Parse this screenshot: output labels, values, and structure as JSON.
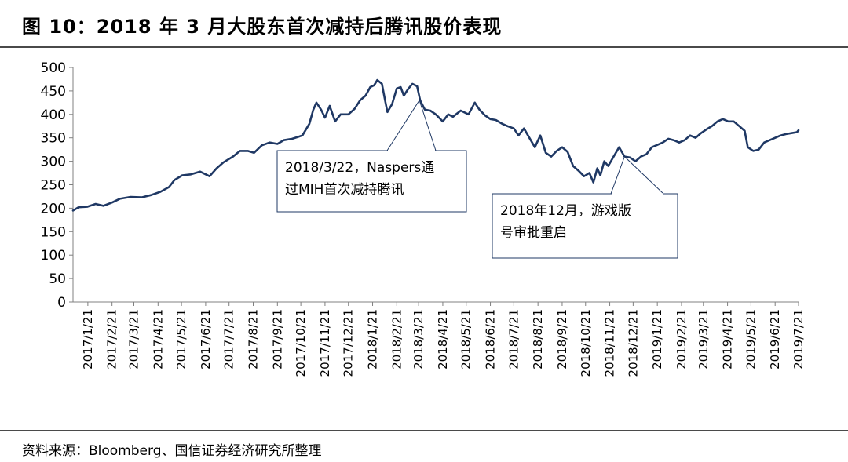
{
  "figure": {
    "title": "图 10：2018 年 3 月大股东首次减持后腾讯股价表现",
    "source": "资料来源：Bloomberg、国信证券经济研究所整理"
  },
  "colors": {
    "line": "#1f3864",
    "axis": "#808080",
    "callout_border": "#1f3864",
    "rule": "#4a4a4a"
  },
  "chart_data": {
    "type": "line",
    "title": "",
    "xlabel": "",
    "ylabel": "",
    "ylim": [
      0,
      500
    ],
    "yticks": [
      0,
      50,
      100,
      150,
      200,
      250,
      300,
      350,
      400,
      450,
      500
    ],
    "x_tick_labels": [
      "2017/1/21",
      "2017/2/21",
      "2017/3/21",
      "2017/4/21",
      "2017/5/21",
      "2017/6/21",
      "2017/7/21",
      "2017/8/21",
      "2017/9/21",
      "2017/10/21",
      "2017/11/21",
      "2017/12/21",
      "2018/1/21",
      "2018/2/21",
      "2018/3/21",
      "2018/4/21",
      "2018/5/21",
      "2018/6/21",
      "2018/7/21",
      "2018/8/21",
      "2018/9/21",
      "2018/10/21",
      "2018/11/21",
      "2018/12/21",
      "2019/1/21",
      "2019/2/21",
      "2019/3/21",
      "2019/4/21",
      "2019/5/21",
      "2019/6/21",
      "2019/7/21"
    ],
    "xlim": [
      "2017/1/2",
      "2019/7/21"
    ],
    "grid": false,
    "legend": "none",
    "series": [
      {
        "values": [
          [
            "2017/1/2",
            195
          ],
          [
            "2017/1/9",
            202
          ],
          [
            "2017/1/20",
            203
          ],
          [
            "2017/1/31",
            209
          ],
          [
            "2017/2/10",
            205
          ],
          [
            "2017/2/21",
            212
          ],
          [
            "2017/3/3",
            220
          ],
          [
            "2017/3/17",
            224
          ],
          [
            "2017/3/31",
            223
          ],
          [
            "2017/4/12",
            228
          ],
          [
            "2017/4/24",
            235
          ],
          [
            "2017/5/5",
            245
          ],
          [
            "2017/5/12",
            260
          ],
          [
            "2017/5/22",
            270
          ],
          [
            "2017/6/2",
            272
          ],
          [
            "2017/6/14",
            278
          ],
          [
            "2017/6/26",
            268
          ],
          [
            "2017/7/5",
            285
          ],
          [
            "2017/7/14",
            298
          ],
          [
            "2017/7/26",
            310
          ],
          [
            "2017/8/4",
            322
          ],
          [
            "2017/8/14",
            322
          ],
          [
            "2017/8/22",
            318
          ],
          [
            "2017/9/1",
            334
          ],
          [
            "2017/9/11",
            340
          ],
          [
            "2017/9/21",
            337
          ],
          [
            "2017/9/29",
            345
          ],
          [
            "2017/10/10",
            348
          ],
          [
            "2017/10/23",
            355
          ],
          [
            "2017/11/1",
            380
          ],
          [
            "2017/11/6",
            410
          ],
          [
            "2017/11/10",
            425
          ],
          [
            "2017/11/16",
            410
          ],
          [
            "2017/11/21",
            393
          ],
          [
            "2017/11/27",
            418
          ],
          [
            "2017/12/4",
            385
          ],
          [
            "2017/12/11",
            400
          ],
          [
            "2017/12/21",
            400
          ],
          [
            "2017/12/29",
            412
          ],
          [
            "2018/1/5",
            430
          ],
          [
            "2018/1/12",
            440
          ],
          [
            "2018/1/18",
            458
          ],
          [
            "2018/1/23",
            462
          ],
          [
            "2018/1/27",
            473
          ],
          [
            "2018/2/2",
            465
          ],
          [
            "2018/2/6",
            430
          ],
          [
            "2018/2/9",
            405
          ],
          [
            "2018/2/15",
            422
          ],
          [
            "2018/2/21",
            455
          ],
          [
            "2018/2/26",
            458
          ],
          [
            "2018/3/2",
            440
          ],
          [
            "2018/3/8",
            455
          ],
          [
            "2018/3/13",
            465
          ],
          [
            "2018/3/19",
            460
          ],
          [
            "2018/3/23",
            430
          ],
          [
            "2018/3/29",
            410
          ],
          [
            "2018/4/5",
            408
          ],
          [
            "2018/4/12",
            400
          ],
          [
            "2018/4/21",
            385
          ],
          [
            "2018/4/28",
            400
          ],
          [
            "2018/5/4",
            395
          ],
          [
            "2018/5/14",
            408
          ],
          [
            "2018/5/24",
            400
          ],
          [
            "2018/6/1",
            425
          ],
          [
            "2018/6/7",
            410
          ],
          [
            "2018/6/14",
            398
          ],
          [
            "2018/6/21",
            390
          ],
          [
            "2018/6/28",
            388
          ],
          [
            "2018/7/6",
            380
          ],
          [
            "2018/7/13",
            375
          ],
          [
            "2018/7/21",
            370
          ],
          [
            "2018/7/27",
            355
          ],
          [
            "2018/8/3",
            370
          ],
          [
            "2018/8/10",
            350
          ],
          [
            "2018/8/17",
            330
          ],
          [
            "2018/8/24",
            355
          ],
          [
            "2018/8/31",
            318
          ],
          [
            "2018/9/7",
            310
          ],
          [
            "2018/9/14",
            322
          ],
          [
            "2018/9/21",
            330
          ],
          [
            "2018/9/28",
            320
          ],
          [
            "2018/10/5",
            290
          ],
          [
            "2018/10/12",
            280
          ],
          [
            "2018/10/19",
            268
          ],
          [
            "2018/10/26",
            275
          ],
          [
            "2018/10/31",
            255
          ],
          [
            "2018/11/5",
            285
          ],
          [
            "2018/11/9",
            270
          ],
          [
            "2018/11/14",
            300
          ],
          [
            "2018/11/19",
            290
          ],
          [
            "2018/11/26",
            310
          ],
          [
            "2018/12/3",
            330
          ],
          [
            "2018/12/10",
            310
          ],
          [
            "2018/12/17",
            308
          ],
          [
            "2018/12/24",
            300
          ],
          [
            "2018/12/31",
            310
          ],
          [
            "2019/1/7",
            315
          ],
          [
            "2019/1/14",
            330
          ],
          [
            "2019/1/21",
            335
          ],
          [
            "2019/1/28",
            340
          ],
          [
            "2019/2/4",
            348
          ],
          [
            "2019/2/11",
            345
          ],
          [
            "2019/2/18",
            340
          ],
          [
            "2019/2/25",
            345
          ],
          [
            "2019/3/4",
            355
          ],
          [
            "2019/3/11",
            350
          ],
          [
            "2019/3/18",
            360
          ],
          [
            "2019/3/25",
            368
          ],
          [
            "2019/4/1",
            375
          ],
          [
            "2019/4/8",
            385
          ],
          [
            "2019/4/15",
            390
          ],
          [
            "2019/4/22",
            385
          ],
          [
            "2019/4/29",
            385
          ],
          [
            "2019/5/6",
            375
          ],
          [
            "2019/5/13",
            365
          ],
          [
            "2019/5/17",
            330
          ],
          [
            "2019/5/24",
            322
          ],
          [
            "2019/5/31",
            325
          ],
          [
            "2019/6/7",
            340
          ],
          [
            "2019/6/14",
            345
          ],
          [
            "2019/6/21",
            350
          ],
          [
            "2019/6/28",
            355
          ],
          [
            "2019/7/5",
            358
          ],
          [
            "2019/7/12",
            360
          ],
          [
            "2019/7/19",
            362
          ],
          [
            "2019/7/21",
            366
          ]
        ]
      }
    ],
    "annotations": [
      {
        "text_lines": [
          "2018/3/22，Naspers通",
          "过MIH首次减持腾讯"
        ],
        "anchor": [
          "2018/3/22",
          430
        ]
      },
      {
        "text_lines": [
          "2018年12月，游戏版",
          "号审批重启"
        ],
        "anchor": [
          "2018/12/10",
          310
        ]
      }
    ]
  }
}
